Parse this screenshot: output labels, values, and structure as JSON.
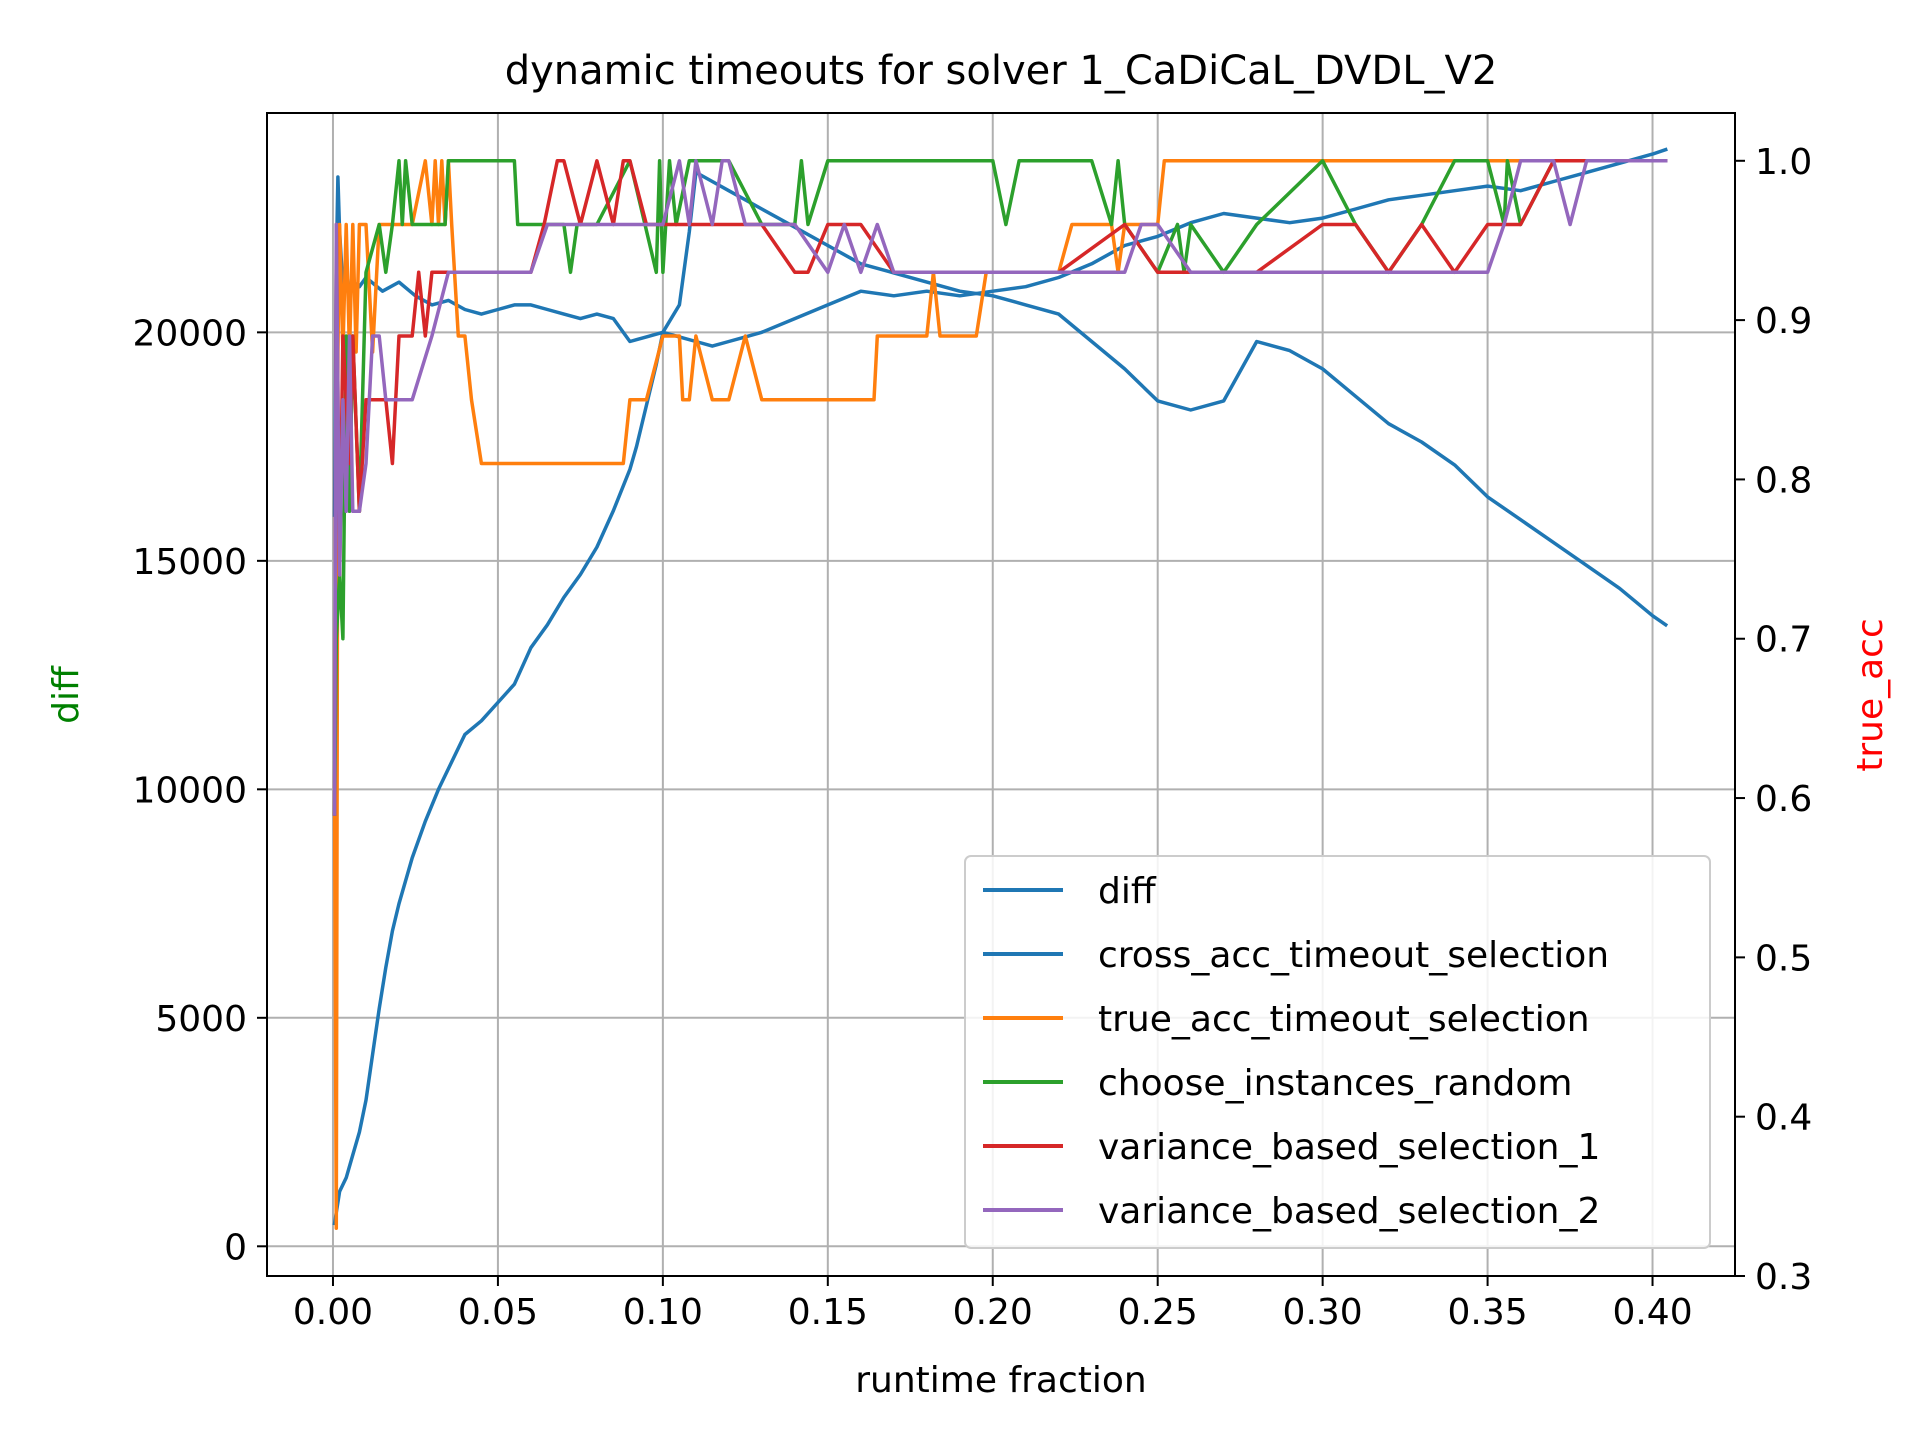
{
  "chart_data": {
    "type": "line",
    "title": "dynamic timeouts for solver 1_CaDiCaL_DVDL_V2",
    "xlabel": "runtime fraction",
    "ylabel_left": "diff",
    "ylabel_right": "true_acc",
    "xlim": [
      -0.02,
      0.425
    ],
    "ylim_left": [
      -650,
      24800
    ],
    "ylim_right": [
      0.3,
      1.03
    ],
    "x_ticks": [
      "0.00",
      "0.05",
      "0.10",
      "0.15",
      "0.20",
      "0.25",
      "0.30",
      "0.35",
      "0.40"
    ],
    "y_left_ticks": [
      "0",
      "5000",
      "10000",
      "15000",
      "20000"
    ],
    "y_right_ticks": [
      "0.3",
      "0.4",
      "0.5",
      "0.6",
      "0.7",
      "0.8",
      "0.9",
      "1.0"
    ],
    "grid": true,
    "legend_position": "lower-right",
    "colors": {
      "diff": "#1f77b4",
      "cross_acc_timeout_selection": "#1f77b4",
      "true_acc_timeout_selection": "#ff7f0e",
      "choose_instances_random": "#2ca02c",
      "variance_based_selection_1": "#d62728",
      "variance_based_selection_2": "#9467bd",
      "ylabel_left": "#008000",
      "ylabel_right": "#ff0000"
    },
    "series": [
      {
        "name": "diff",
        "axis": "left",
        "x": [
          0.0005,
          0.002,
          0.004,
          0.006,
          0.008,
          0.01,
          0.012,
          0.014,
          0.016,
          0.018,
          0.02,
          0.024,
          0.028,
          0.032,
          0.036,
          0.04,
          0.045,
          0.05,
          0.055,
          0.06,
          0.065,
          0.07,
          0.075,
          0.08,
          0.085,
          0.09,
          0.092,
          0.095,
          0.098,
          0.1,
          0.105,
          0.108,
          0.11,
          0.115,
          0.12,
          0.125,
          0.13,
          0.14,
          0.15,
          0.16,
          0.17,
          0.18,
          0.19,
          0.2,
          0.21,
          0.22,
          0.23,
          0.24,
          0.25,
          0.26,
          0.27,
          0.28,
          0.29,
          0.3,
          0.31,
          0.32,
          0.33,
          0.34,
          0.35,
          0.36,
          0.37,
          0.38,
          0.39,
          0.4,
          0.404
        ],
        "y": [
          500,
          1200,
          1500,
          2000,
          2500,
          3200,
          4200,
          5200,
          6100,
          6900,
          7500,
          8500,
          9300,
          10000,
          10600,
          11200,
          11500,
          11900,
          12300,
          13100,
          13600,
          14200,
          14700,
          15300,
          16100,
          17000,
          17500,
          18400,
          19300,
          20000,
          20600,
          22200,
          23500,
          23300,
          23100,
          22900,
          22700,
          22300,
          21900,
          21500,
          21300,
          21100,
          20900,
          20800,
          20600,
          20400,
          19800,
          19200,
          18500,
          18300,
          18500,
          19800,
          19600,
          19200,
          18600,
          18000,
          17600,
          17100,
          16400,
          15900,
          15400,
          14900,
          14400,
          13800,
          13600
        ]
      },
      {
        "name": "cross_acc_timeout_selection",
        "axis": "left",
        "x": [
          0.0005,
          0.001,
          0.0015,
          0.002,
          0.003,
          0.004,
          0.005,
          0.006,
          0.008,
          0.01,
          0.015,
          0.02,
          0.025,
          0.03,
          0.035,
          0.04,
          0.045,
          0.05,
          0.055,
          0.06,
          0.065,
          0.07,
          0.075,
          0.08,
          0.085,
          0.09,
          0.095,
          0.1,
          0.105,
          0.11,
          0.115,
          0.12,
          0.125,
          0.13,
          0.14,
          0.15,
          0.16,
          0.17,
          0.18,
          0.19,
          0.2,
          0.21,
          0.22,
          0.23,
          0.24,
          0.25,
          0.26,
          0.27,
          0.28,
          0.29,
          0.3,
          0.31,
          0.32,
          0.33,
          0.34,
          0.35,
          0.36,
          0.37,
          0.38,
          0.39,
          0.4,
          0.404
        ],
        "y": [
          16000,
          21500,
          23400,
          22200,
          21000,
          21300,
          20900,
          21100,
          21000,
          21200,
          20900,
          21100,
          20800,
          20600,
          20700,
          20500,
          20400,
          20500,
          20600,
          20600,
          20500,
          20400,
          20300,
          20400,
          20300,
          19800,
          19900,
          20000,
          19900,
          19800,
          19700,
          19800,
          19900,
          20000,
          20300,
          20600,
          20900,
          20800,
          20900,
          20800,
          20900,
          21000,
          21200,
          21500,
          21900,
          22100,
          22400,
          22600,
          22500,
          22400,
          22500,
          22700,
          22900,
          23000,
          23100,
          23200,
          23100,
          23300,
          23500,
          23700,
          23900,
          24000
        ]
      },
      {
        "name": "true_acc_timeout_selection",
        "axis": "right",
        "x": [
          0.0005,
          0.001,
          0.0015,
          0.002,
          0.003,
          0.004,
          0.005,
          0.006,
          0.007,
          0.008,
          0.01,
          0.012,
          0.014,
          0.016,
          0.018,
          0.02,
          0.024,
          0.028,
          0.03,
          0.031,
          0.032,
          0.033,
          0.034,
          0.035,
          0.036,
          0.038,
          0.04,
          0.042,
          0.045,
          0.05,
          0.06,
          0.07,
          0.08,
          0.088,
          0.09,
          0.095,
          0.1,
          0.105,
          0.106,
          0.108,
          0.11,
          0.115,
          0.12,
          0.125,
          0.13,
          0.14,
          0.15,
          0.16,
          0.164,
          0.165,
          0.17,
          0.18,
          0.182,
          0.184,
          0.186,
          0.19,
          0.195,
          0.198,
          0.2,
          0.21,
          0.22,
          0.224,
          0.226,
          0.236,
          0.238,
          0.24,
          0.25,
          0.252,
          0.26,
          0.27,
          0.28,
          0.3,
          0.32,
          0.34,
          0.35,
          0.355,
          0.36,
          0.37,
          0.38,
          0.39,
          0.4,
          0.404
        ],
        "y": [
          0.59,
          0.33,
          0.88,
          0.96,
          0.88,
          0.96,
          0.88,
          0.96,
          0.88,
          0.96,
          0.96,
          0.88,
          0.96,
          0.96,
          0.96,
          0.96,
          0.96,
          1.0,
          0.96,
          1.0,
          0.96,
          1.0,
          0.96,
          1.0,
          0.96,
          0.89,
          0.89,
          0.85,
          0.81,
          0.81,
          0.81,
          0.81,
          0.81,
          0.81,
          0.85,
          0.85,
          0.89,
          0.89,
          0.85,
          0.85,
          0.89,
          0.85,
          0.85,
          0.89,
          0.85,
          0.85,
          0.85,
          0.85,
          0.85,
          0.89,
          0.89,
          0.89,
          0.93,
          0.89,
          0.89,
          0.89,
          0.89,
          0.93,
          0.93,
          0.93,
          0.93,
          0.96,
          0.96,
          0.96,
          0.93,
          0.96,
          0.96,
          1.0,
          1.0,
          1.0,
          1.0,
          1.0,
          1.0,
          1.0,
          1.0,
          1.0,
          1.0,
          1.0,
          1.0,
          1.0,
          1.0,
          1.0
        ]
      },
      {
        "name": "choose_instances_random",
        "axis": "right",
        "x": [
          0.0005,
          0.001,
          0.002,
          0.003,
          0.004,
          0.005,
          0.006,
          0.008,
          0.01,
          0.014,
          0.016,
          0.018,
          0.02,
          0.021,
          0.022,
          0.024,
          0.026,
          0.03,
          0.034,
          0.035,
          0.036,
          0.04,
          0.05,
          0.055,
          0.056,
          0.06,
          0.07,
          0.072,
          0.074,
          0.08,
          0.09,
          0.098,
          0.099,
          0.1,
          0.102,
          0.104,
          0.108,
          0.11,
          0.115,
          0.12,
          0.13,
          0.14,
          0.142,
          0.144,
          0.15,
          0.16,
          0.17,
          0.18,
          0.19,
          0.2,
          0.204,
          0.208,
          0.21,
          0.22,
          0.23,
          0.236,
          0.238,
          0.24,
          0.25,
          0.256,
          0.258,
          0.26,
          0.27,
          0.28,
          0.3,
          0.31,
          0.32,
          0.33,
          0.34,
          0.35,
          0.355,
          0.356,
          0.36,
          0.37,
          0.38,
          0.39,
          0.4,
          0.404
        ],
        "y": [
          0.59,
          0.7,
          0.74,
          0.7,
          0.89,
          0.78,
          0.89,
          0.78,
          0.93,
          0.96,
          0.93,
          0.96,
          1.0,
          0.96,
          1.0,
          0.96,
          0.96,
          0.96,
          0.96,
          1.0,
          1.0,
          1.0,
          1.0,
          1.0,
          0.96,
          0.96,
          0.96,
          0.93,
          0.96,
          0.96,
          1.0,
          0.93,
          1.0,
          0.93,
          1.0,
          0.96,
          1.0,
          1.0,
          1.0,
          1.0,
          0.96,
          0.96,
          1.0,
          0.96,
          1.0,
          1.0,
          1.0,
          1.0,
          1.0,
          1.0,
          0.96,
          1.0,
          1.0,
          1.0,
          1.0,
          0.96,
          1.0,
          0.96,
          0.93,
          0.96,
          0.93,
          0.96,
          0.93,
          0.96,
          1.0,
          0.96,
          0.93,
          0.96,
          1.0,
          1.0,
          0.96,
          1.0,
          0.96,
          1.0,
          1.0,
          1.0,
          1.0,
          1.0
        ]
      },
      {
        "name": "variance_based_selection_1",
        "axis": "right",
        "x": [
          0.0005,
          0.001,
          0.002,
          0.003,
          0.004,
          0.005,
          0.006,
          0.008,
          0.01,
          0.012,
          0.016,
          0.018,
          0.02,
          0.024,
          0.026,
          0.028,
          0.03,
          0.04,
          0.05,
          0.06,
          0.064,
          0.068,
          0.07,
          0.075,
          0.08,
          0.085,
          0.088,
          0.09,
          0.095,
          0.098,
          0.1,
          0.11,
          0.12,
          0.13,
          0.14,
          0.144,
          0.15,
          0.16,
          0.17,
          0.18,
          0.19,
          0.2,
          0.22,
          0.24,
          0.25,
          0.26,
          0.27,
          0.28,
          0.3,
          0.31,
          0.32,
          0.33,
          0.34,
          0.35,
          0.36,
          0.37,
          0.38,
          0.39,
          0.4,
          0.404
        ],
        "y": [
          0.59,
          0.96,
          0.74,
          0.89,
          0.85,
          0.81,
          0.89,
          0.78,
          0.85,
          0.85,
          0.85,
          0.81,
          0.89,
          0.89,
          0.93,
          0.89,
          0.93,
          0.93,
          0.93,
          0.93,
          0.96,
          1.0,
          1.0,
          0.96,
          1.0,
          0.96,
          1.0,
          1.0,
          0.96,
          0.96,
          0.96,
          0.96,
          0.96,
          0.96,
          0.93,
          0.93,
          0.96,
          0.96,
          0.93,
          0.93,
          0.93,
          0.93,
          0.93,
          0.96,
          0.93,
          0.93,
          0.93,
          0.93,
          0.96,
          0.96,
          0.93,
          0.96,
          0.93,
          0.96,
          0.96,
          1.0,
          1.0,
          1.0,
          1.0,
          1.0
        ]
      },
      {
        "name": "variance_based_selection_2",
        "axis": "right",
        "x": [
          0.0005,
          0.001,
          0.002,
          0.003,
          0.004,
          0.005,
          0.006,
          0.008,
          0.01,
          0.012,
          0.014,
          0.016,
          0.02,
          0.024,
          0.03,
          0.035,
          0.04,
          0.05,
          0.06,
          0.065,
          0.07,
          0.08,
          0.09,
          0.1,
          0.105,
          0.108,
          0.11,
          0.115,
          0.118,
          0.12,
          0.125,
          0.13,
          0.14,
          0.15,
          0.155,
          0.16,
          0.165,
          0.17,
          0.18,
          0.19,
          0.2,
          0.21,
          0.22,
          0.23,
          0.24,
          0.245,
          0.25,
          0.26,
          0.27,
          0.28,
          0.3,
          0.32,
          0.34,
          0.35,
          0.355,
          0.36,
          0.37,
          0.375,
          0.38,
          0.39,
          0.4,
          0.404
        ],
        "y": [
          0.59,
          0.96,
          0.74,
          0.85,
          0.78,
          0.89,
          0.78,
          0.78,
          0.81,
          0.89,
          0.89,
          0.85,
          0.85,
          0.85,
          0.89,
          0.93,
          0.93,
          0.93,
          0.93,
          0.96,
          0.96,
          0.96,
          0.96,
          0.96,
          1.0,
          0.96,
          1.0,
          0.96,
          1.0,
          1.0,
          0.96,
          0.96,
          0.96,
          0.93,
          0.96,
          0.93,
          0.96,
          0.93,
          0.93,
          0.93,
          0.93,
          0.93,
          0.93,
          0.93,
          0.93,
          0.96,
          0.96,
          0.93,
          0.93,
          0.93,
          0.93,
          0.93,
          0.93,
          0.93,
          0.96,
          1.0,
          1.0,
          0.96,
          1.0,
          1.0,
          1.0,
          1.0
        ]
      }
    ]
  }
}
